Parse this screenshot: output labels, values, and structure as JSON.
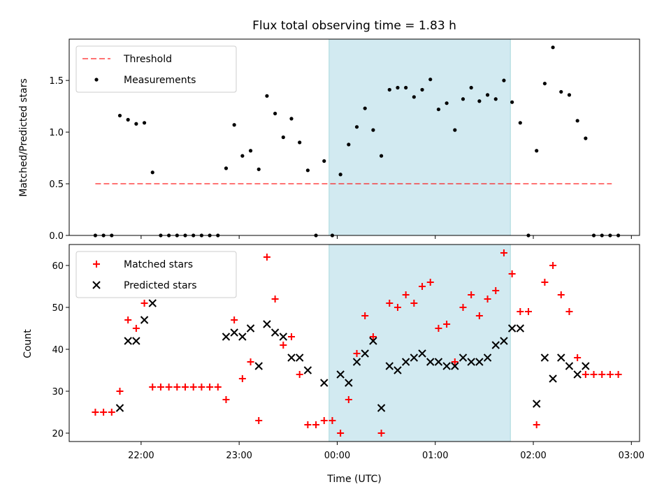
{
  "chart_data": [
    {
      "type": "scatter",
      "title": "Flux total observing time = 1.83 h",
      "xlabel": "",
      "ylabel": "Matched/Predicted stars",
      "ylim": [
        0,
        1.9
      ],
      "yticks": [
        0.0,
        0.5,
        1.0,
        1.5
      ],
      "ytick_labels": [
        "0.0",
        "0.5",
        "1.0",
        "1.5"
      ],
      "xlim": [
        "21:16",
        "03:05"
      ],
      "shaded_span": {
        "start": "23:55",
        "end": "01:46",
        "color": "#add8e6"
      },
      "threshold": {
        "name": "Threshold",
        "value": 0.5,
        "x_start": "21:32",
        "x_end": "02:48",
        "color": "#ff0000",
        "style": "dashed"
      },
      "legend": {
        "position": "top-left",
        "entries": [
          "Threshold",
          "Measurements"
        ]
      },
      "series": [
        {
          "name": "Measurements",
          "color": "#000000",
          "marker": "dot",
          "points": [
            [
              "21:32",
              0.0
            ],
            [
              "21:37",
              0.0
            ],
            [
              "21:42",
              0.0
            ],
            [
              "21:47",
              1.16
            ],
            [
              "21:52",
              1.12
            ],
            [
              "21:57",
              1.08
            ],
            [
              "22:02",
              1.09
            ],
            [
              "22:07",
              0.61
            ],
            [
              "22:12",
              0.0
            ],
            [
              "22:17",
              0.0
            ],
            [
              "22:22",
              0.0
            ],
            [
              "22:27",
              0.0
            ],
            [
              "22:32",
              0.0
            ],
            [
              "22:37",
              0.0
            ],
            [
              "22:42",
              0.0
            ],
            [
              "22:47",
              0.0
            ],
            [
              "22:52",
              0.65
            ],
            [
              "22:57",
              1.07
            ],
            [
              "23:02",
              0.77
            ],
            [
              "23:07",
              0.82
            ],
            [
              "23:12",
              0.64
            ],
            [
              "23:17",
              1.35
            ],
            [
              "23:22",
              1.18
            ],
            [
              "23:27",
              0.95
            ],
            [
              "23:32",
              1.13
            ],
            [
              "23:37",
              0.9
            ],
            [
              "23:42",
              0.63
            ],
            [
              "23:47",
              0.0
            ],
            [
              "23:52",
              0.72
            ],
            [
              "23:57",
              0.0
            ],
            [
              "00:02",
              0.59
            ],
            [
              "00:07",
              0.88
            ],
            [
              "00:12",
              1.05
            ],
            [
              "00:17",
              1.23
            ],
            [
              "00:22",
              1.02
            ],
            [
              "00:27",
              0.77
            ],
            [
              "00:32",
              1.41
            ],
            [
              "00:37",
              1.43
            ],
            [
              "00:42",
              1.43
            ],
            [
              "00:47",
              1.34
            ],
            [
              "00:52",
              1.41
            ],
            [
              "00:57",
              1.51
            ],
            [
              "01:02",
              1.22
            ],
            [
              "01:07",
              1.28
            ],
            [
              "01:12",
              1.02
            ],
            [
              "01:17",
              1.32
            ],
            [
              "01:22",
              1.43
            ],
            [
              "01:27",
              1.3
            ],
            [
              "01:32",
              1.36
            ],
            [
              "01:37",
              1.32
            ],
            [
              "01:42",
              1.5
            ],
            [
              "01:47",
              1.29
            ],
            [
              "01:52",
              1.09
            ],
            [
              "01:57",
              0.0
            ],
            [
              "02:02",
              0.82
            ],
            [
              "02:07",
              1.47
            ],
            [
              "02:12",
              1.82
            ],
            [
              "02:17",
              1.39
            ],
            [
              "02:22",
              1.36
            ],
            [
              "02:27",
              1.11
            ],
            [
              "02:32",
              0.94
            ],
            [
              "02:37",
              0.0
            ],
            [
              "02:42",
              0.0
            ],
            [
              "02:47",
              0.0
            ],
            [
              "02:52",
              0.0
            ]
          ]
        }
      ]
    },
    {
      "type": "scatter",
      "title": "",
      "xlabel": "Time (UTC)",
      "ylabel": "Count",
      "ylim": [
        18,
        65
      ],
      "yticks": [
        20,
        30,
        40,
        50,
        60
      ],
      "ytick_labels": [
        "20",
        "30",
        "40",
        "50",
        "60"
      ],
      "xlim": [
        "21:16",
        "03:05"
      ],
      "xticks": [
        "22:00",
        "23:00",
        "00:00",
        "01:00",
        "02:00",
        "03:00"
      ],
      "shaded_span": {
        "start": "23:55",
        "end": "01:46",
        "color": "#add8e6"
      },
      "legend": {
        "position": "top-left",
        "entries": [
          "Matched stars",
          "Predicted stars"
        ]
      },
      "series": [
        {
          "name": "Matched stars",
          "color": "#ff0000",
          "marker": "plus",
          "points": [
            [
              "21:32",
              25
            ],
            [
              "21:37",
              25
            ],
            [
              "21:42",
              25
            ],
            [
              "21:47",
              30
            ],
            [
              "21:52",
              47
            ],
            [
              "21:57",
              45
            ],
            [
              "22:02",
              51
            ],
            [
              "22:07",
              31
            ],
            [
              "22:12",
              31
            ],
            [
              "22:17",
              31
            ],
            [
              "22:22",
              31
            ],
            [
              "22:27",
              31
            ],
            [
              "22:32",
              31
            ],
            [
              "22:37",
              31
            ],
            [
              "22:42",
              31
            ],
            [
              "22:47",
              31
            ],
            [
              "22:52",
              28
            ],
            [
              "22:57",
              47
            ],
            [
              "23:02",
              33
            ],
            [
              "23:07",
              37
            ],
            [
              "23:12",
              23
            ],
            [
              "23:17",
              62
            ],
            [
              "23:22",
              52
            ],
            [
              "23:27",
              41
            ],
            [
              "23:32",
              43
            ],
            [
              "23:37",
              34
            ],
            [
              "23:42",
              22
            ],
            [
              "23:47",
              22
            ],
            [
              "23:52",
              23
            ],
            [
              "23:57",
              23
            ],
            [
              "00:02",
              20
            ],
            [
              "00:07",
              28
            ],
            [
              "00:12",
              39
            ],
            [
              "00:17",
              48
            ],
            [
              "00:22",
              43
            ],
            [
              "00:27",
              20
            ],
            [
              "00:32",
              51
            ],
            [
              "00:37",
              50
            ],
            [
              "00:42",
              53
            ],
            [
              "00:47",
              51
            ],
            [
              "00:52",
              55
            ],
            [
              "00:57",
              56
            ],
            [
              "01:02",
              45
            ],
            [
              "01:07",
              46
            ],
            [
              "01:12",
              37
            ],
            [
              "01:17",
              50
            ],
            [
              "01:22",
              53
            ],
            [
              "01:27",
              48
            ],
            [
              "01:32",
              52
            ],
            [
              "01:37",
              54
            ],
            [
              "01:42",
              63
            ],
            [
              "01:47",
              58
            ],
            [
              "01:52",
              49
            ],
            [
              "01:57",
              49
            ],
            [
              "02:02",
              22
            ],
            [
              "02:07",
              56
            ],
            [
              "02:12",
              60
            ],
            [
              "02:17",
              53
            ],
            [
              "02:22",
              49
            ],
            [
              "02:27",
              38
            ],
            [
              "02:32",
              34
            ],
            [
              "02:37",
              34
            ],
            [
              "02:42",
              34
            ],
            [
              "02:47",
              34
            ],
            [
              "02:52",
              34
            ]
          ]
        },
        {
          "name": "Predicted stars",
          "color": "#000000",
          "marker": "x",
          "points": [
            [
              "21:47",
              26
            ],
            [
              "21:52",
              42
            ],
            [
              "21:57",
              42
            ],
            [
              "22:02",
              47
            ],
            [
              "22:07",
              51
            ],
            [
              "22:52",
              43
            ],
            [
              "22:57",
              44
            ],
            [
              "23:02",
              43
            ],
            [
              "23:07",
              45
            ],
            [
              "23:12",
              36
            ],
            [
              "23:17",
              46
            ],
            [
              "23:22",
              44
            ],
            [
              "23:27",
              43
            ],
            [
              "23:32",
              38
            ],
            [
              "23:37",
              38
            ],
            [
              "23:42",
              35
            ],
            [
              "23:52",
              32
            ],
            [
              "00:02",
              34
            ],
            [
              "00:07",
              32
            ],
            [
              "00:12",
              37
            ],
            [
              "00:17",
              39
            ],
            [
              "00:22",
              42
            ],
            [
              "00:27",
              26
            ],
            [
              "00:32",
              36
            ],
            [
              "00:37",
              35
            ],
            [
              "00:42",
              37
            ],
            [
              "00:47",
              38
            ],
            [
              "00:52",
              39
            ],
            [
              "00:57",
              37
            ],
            [
              "01:02",
              37
            ],
            [
              "01:07",
              36
            ],
            [
              "01:12",
              36
            ],
            [
              "01:17",
              38
            ],
            [
              "01:22",
              37
            ],
            [
              "01:27",
              37
            ],
            [
              "01:32",
              38
            ],
            [
              "01:37",
              41
            ],
            [
              "01:42",
              42
            ],
            [
              "01:47",
              45
            ],
            [
              "01:52",
              45
            ],
            [
              "02:02",
              27
            ],
            [
              "02:07",
              38
            ],
            [
              "02:12",
              33
            ],
            [
              "02:17",
              38
            ],
            [
              "02:22",
              36
            ],
            [
              "02:27",
              34
            ],
            [
              "02:32",
              36
            ]
          ]
        }
      ]
    }
  ]
}
